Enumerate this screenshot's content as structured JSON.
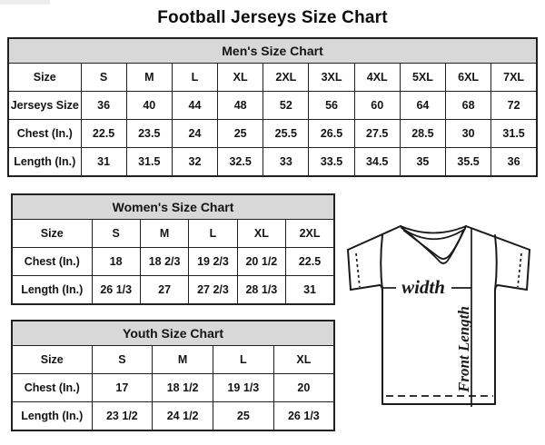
{
  "page": {
    "title": "Football Jerseys Size Chart"
  },
  "chart_data": [
    {
      "type": "table",
      "name": "mens-size-chart",
      "title": "Men's Size Chart",
      "columns": [
        "Size",
        "S",
        "M",
        "L",
        "XL",
        "2XL",
        "3XL",
        "4XL",
        "5XL",
        "6XL",
        "7XL"
      ],
      "rows": [
        [
          "Jerseys Size",
          "36",
          "40",
          "44",
          "48",
          "52",
          "56",
          "60",
          "64",
          "68",
          "72"
        ],
        [
          "Chest (In.)",
          "22.5",
          "23.5",
          "24",
          "25",
          "25.5",
          "26.5",
          "27.5",
          "28.5",
          "30",
          "31.5"
        ],
        [
          "Length (In.)",
          "31",
          "31.5",
          "32",
          "32.5",
          "33",
          "33.5",
          "34.5",
          "35",
          "35.5",
          "36"
        ]
      ]
    },
    {
      "type": "table",
      "name": "womens-size-chart",
      "title": "Women's Size Chart",
      "columns": [
        "Size",
        "S",
        "M",
        "L",
        "XL",
        "2XL"
      ],
      "rows": [
        [
          "Chest (In.)",
          "18",
          "18 2/3",
          "19 2/3",
          "20 1/2",
          "22.5"
        ],
        [
          "Length (In.)",
          "26 1/3",
          "27",
          "27 2/3",
          "28 1/3",
          "31"
        ]
      ]
    },
    {
      "type": "table",
      "name": "youth-size-chart",
      "title": "Youth Size Chart",
      "columns": [
        "Size",
        "S",
        "M",
        "L",
        "XL"
      ],
      "rows": [
        [
          "Chest (In.)",
          "17",
          "18 1/2",
          "19 1/3",
          "20"
        ],
        [
          "Length (In.)",
          "23 1/2",
          "24 1/2",
          "25",
          "26 1/3"
        ]
      ]
    }
  ],
  "diagram": {
    "width_label": "width",
    "front_length_label": "Front Length"
  },
  "colors": {
    "header_bg": "#d8d8d8",
    "border": "#212121",
    "text": "#141414",
    "background": "#ffffff"
  }
}
